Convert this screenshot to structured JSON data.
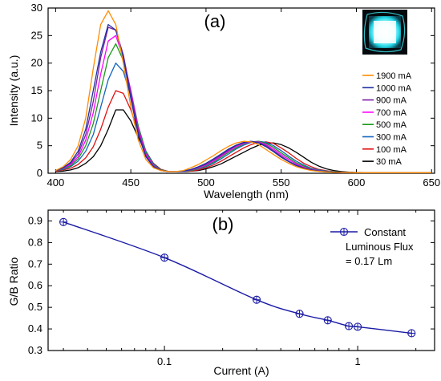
{
  "chart_data": [
    {
      "type": "line",
      "panel_label": "(a)",
      "xlabel": "Wavelength (nm)",
      "ylabel": "Intensity (a.u.)",
      "xlim": [
        395,
        652
      ],
      "ylim": [
        0,
        30
      ],
      "xticks": [
        400,
        450,
        500,
        550,
        600,
        650
      ],
      "yticks": [
        0,
        5,
        10,
        15,
        20,
        25,
        30
      ],
      "legend_position": "right",
      "inset": "square cyan glowing emitter photo, top-right",
      "x": [
        400,
        405,
        410,
        415,
        420,
        425,
        430,
        435,
        440,
        445,
        450,
        455,
        460,
        465,
        470,
        475,
        480,
        485,
        490,
        495,
        500,
        505,
        510,
        515,
        520,
        525,
        530,
        535,
        540,
        545,
        550,
        555,
        560,
        565,
        570,
        575,
        580,
        585,
        590,
        595,
        600,
        605,
        610,
        615,
        620,
        625,
        630,
        635,
        640,
        645,
        650
      ],
      "series": [
        {
          "name": "1900 mA",
          "color": "#ff8c00",
          "values": [
            0.5,
            1.2,
            2.5,
            5.0,
            10.0,
            19.0,
            27.0,
            29.5,
            27.0,
            20.0,
            12.0,
            6.0,
            2.5,
            1.0,
            0.5,
            0.3,
            0.3,
            0.5,
            1.0,
            1.6,
            2.4,
            3.2,
            4.1,
            4.9,
            5.5,
            5.8,
            5.7,
            5.2,
            4.3,
            3.4,
            2.5,
            1.8,
            1.2,
            0.8,
            0.5,
            0.35,
            0.25,
            0.2,
            0.15,
            0.12,
            0.1,
            0.1,
            0.1,
            0.1,
            0.1,
            0.1,
            0.1,
            0.1,
            0.1,
            0.1,
            0.1
          ]
        },
        {
          "name": "1000 mA",
          "color": "#1f2fa0",
          "values": [
            0.5,
            1.0,
            2.0,
            4.0,
            8.0,
            15.0,
            22.0,
            27.0,
            26.0,
            21.0,
            13.5,
            7.0,
            3.0,
            1.2,
            0.5,
            0.3,
            0.3,
            0.4,
            0.7,
            1.2,
            1.8,
            2.6,
            3.5,
            4.4,
            5.1,
            5.6,
            5.8,
            5.5,
            4.8,
            3.9,
            2.9,
            2.1,
            1.4,
            0.9,
            0.6,
            0.4,
            0.3,
            0.2,
            0.15,
            0.12,
            0.1,
            0.1,
            0.1,
            0.1,
            0.1,
            0.1,
            0.1,
            0.1,
            0.1,
            0.1,
            0.1
          ]
        },
        {
          "name": "900 mA",
          "color": "#7b1fa2",
          "values": [
            0.5,
            1.0,
            1.8,
            3.5,
            7.0,
            13.0,
            21.0,
            26.5,
            26.0,
            21.5,
            14.5,
            7.5,
            3.2,
            1.3,
            0.5,
            0.3,
            0.3,
            0.4,
            0.6,
            1.1,
            1.6,
            2.4,
            3.3,
            4.2,
            5.0,
            5.5,
            5.8,
            5.6,
            5.0,
            4.1,
            3.1,
            2.2,
            1.5,
            1.0,
            0.6,
            0.4,
            0.3,
            0.2,
            0.15,
            0.12,
            0.1,
            0.1,
            0.1,
            0.1,
            0.1,
            0.1,
            0.1,
            0.1,
            0.1,
            0.1,
            0.1
          ]
        },
        {
          "name": "700 mA",
          "color": "#ff00ff",
          "values": [
            0.5,
            0.9,
            1.6,
            3.0,
            6.0,
            11.0,
            18.0,
            24.0,
            25.0,
            21.0,
            15.0,
            8.0,
            3.5,
            1.4,
            0.5,
            0.3,
            0.3,
            0.4,
            0.6,
            1.0,
            1.5,
            2.2,
            3.1,
            4.0,
            4.8,
            5.4,
            5.7,
            5.7,
            5.2,
            4.4,
            3.4,
            2.5,
            1.7,
            1.1,
            0.7,
            0.45,
            0.3,
            0.2,
            0.15,
            0.12,
            0.1,
            0.1,
            0.1,
            0.1,
            0.1,
            0.1,
            0.1,
            0.1,
            0.1,
            0.1,
            0.1
          ]
        },
        {
          "name": "500 mA",
          "color": "#1a9a1a",
          "values": [
            0.5,
            0.8,
            1.4,
            2.6,
            5.0,
            9.0,
            15.0,
            21.0,
            23.5,
            20.5,
            15.0,
            8.5,
            3.8,
            1.5,
            0.6,
            0.3,
            0.3,
            0.4,
            0.5,
            0.9,
            1.4,
            2.0,
            2.9,
            3.8,
            4.6,
            5.3,
            5.7,
            5.8,
            5.4,
            4.7,
            3.7,
            2.8,
            1.9,
            1.3,
            0.8,
            0.5,
            0.35,
            0.25,
            0.18,
            0.13,
            0.1,
            0.1,
            0.1,
            0.1,
            0.1,
            0.1,
            0.1,
            0.1,
            0.1,
            0.1,
            0.1
          ]
        },
        {
          "name": "300 mA",
          "color": "#1565c0",
          "values": [
            0.5,
            0.7,
            1.2,
            2.2,
            4.0,
            7.0,
            12.0,
            17.0,
            20.0,
            18.5,
            14.0,
            8.5,
            4.0,
            1.7,
            0.6,
            0.3,
            0.3,
            0.3,
            0.5,
            0.8,
            1.2,
            1.8,
            2.6,
            3.5,
            4.4,
            5.1,
            5.6,
            5.8,
            5.6,
            5.0,
            4.1,
            3.1,
            2.2,
            1.5,
            0.9,
            0.6,
            0.4,
            0.3,
            0.2,
            0.15,
            0.12,
            0.1,
            0.1,
            0.1,
            0.1,
            0.1,
            0.1,
            0.1,
            0.1,
            0.1,
            0.1
          ]
        },
        {
          "name": "100 mA",
          "color": "#e01010",
          "values": [
            0.4,
            0.6,
            0.9,
            1.6,
            2.8,
            4.8,
            8.0,
            12.0,
            15.0,
            14.5,
            11.5,
            7.5,
            4.0,
            1.8,
            0.7,
            0.3,
            0.3,
            0.3,
            0.4,
            0.6,
            1.0,
            1.5,
            2.2,
            3.0,
            3.8,
            4.6,
            5.2,
            5.6,
            5.7,
            5.4,
            4.6,
            3.7,
            2.7,
            1.8,
            1.2,
            0.7,
            0.45,
            0.3,
            0.2,
            0.15,
            0.12,
            0.1,
            0.1,
            0.1,
            0.1,
            0.1,
            0.1,
            0.1,
            0.1,
            0.1,
            0.1
          ]
        },
        {
          "name": "30 mA",
          "color": "#000000",
          "values": [
            0.3,
            0.4,
            0.6,
            1.0,
            1.8,
            3.0,
            5.0,
            8.0,
            11.5,
            11.5,
            9.5,
            6.5,
            3.8,
            1.8,
            0.7,
            0.3,
            0.3,
            0.3,
            0.4,
            0.5,
            0.8,
            1.2,
            1.7,
            2.4,
            3.1,
            3.8,
            4.5,
            5.1,
            5.4,
            5.5,
            5.2,
            4.6,
            3.8,
            2.9,
            2.0,
            1.3,
            0.8,
            0.5,
            0.3,
            0.2,
            0.15,
            0.12,
            0.1,
            0.1,
            0.1,
            0.1,
            0.1,
            0.1,
            0.1,
            0.1,
            0.1
          ]
        }
      ]
    },
    {
      "type": "line",
      "panel_label": "(b)",
      "xlabel": "Current (A)",
      "ylabel": "G/B Ratio",
      "xscale": "log",
      "xlim": [
        0.025,
        2.5
      ],
      "ylim": [
        0.3,
        0.95
      ],
      "xticks": [
        0.1,
        1
      ],
      "xtick_labels": [
        "0.1",
        "1"
      ],
      "yticks": [
        0.3,
        0.4,
        0.5,
        0.6,
        0.7,
        0.8,
        0.9
      ],
      "yticklabels": [
        "0.3",
        "0.4",
        "0.5",
        "0.6",
        "0.7",
        "0.8",
        "0.9"
      ],
      "legend_position": "top-right",
      "legend_text": [
        "Constant",
        "Luminous Flux",
        "= 0.17 Lm"
      ],
      "color": "#1a1aa6",
      "x": [
        0.03,
        0.1,
        0.3,
        0.5,
        0.7,
        0.9,
        1.0,
        1.9
      ],
      "values": [
        0.895,
        0.73,
        0.535,
        0.47,
        0.44,
        0.413,
        0.41,
        0.38
      ]
    }
  ]
}
